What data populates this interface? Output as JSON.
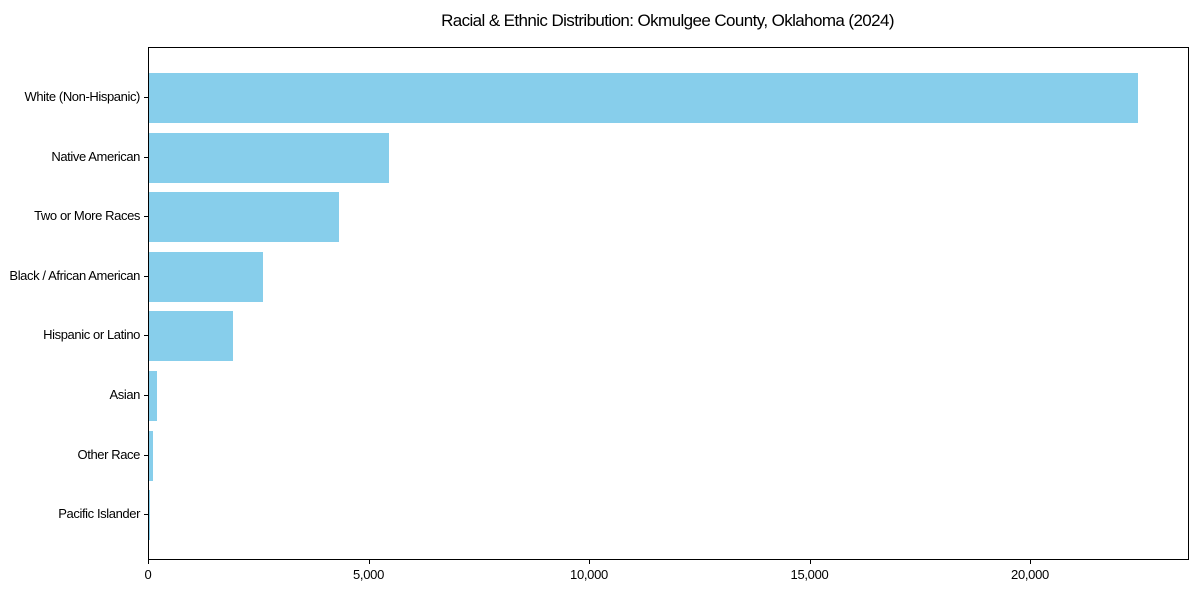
{
  "chart_data": {
    "type": "bar",
    "orientation": "horizontal",
    "title": "Racial & Ethnic Distribution: Okmulgee County, Oklahoma (2024)",
    "categories": [
      "White (Non-Hispanic)",
      "Native American",
      "Two or More Races",
      "Black / African American",
      "Hispanic or Latino",
      "Asian",
      "Other Race",
      "Pacific Islander"
    ],
    "values": [
      22430,
      5450,
      4300,
      2590,
      1910,
      180,
      90,
      10
    ],
    "xlabel": "",
    "ylabel": "",
    "xlim": [
      0,
      23560
    ],
    "xticks": {
      "values": [
        0,
        5000,
        10000,
        15000,
        20000
      ],
      "labels": [
        "0",
        "5,000",
        "10,000",
        "15,000",
        "20,000"
      ]
    },
    "grid": false,
    "legend": null,
    "bar_color": "#87CEEB",
    "frame_color": "#000000",
    "text_color": "#000000",
    "background_color": "#FFFFFF"
  }
}
